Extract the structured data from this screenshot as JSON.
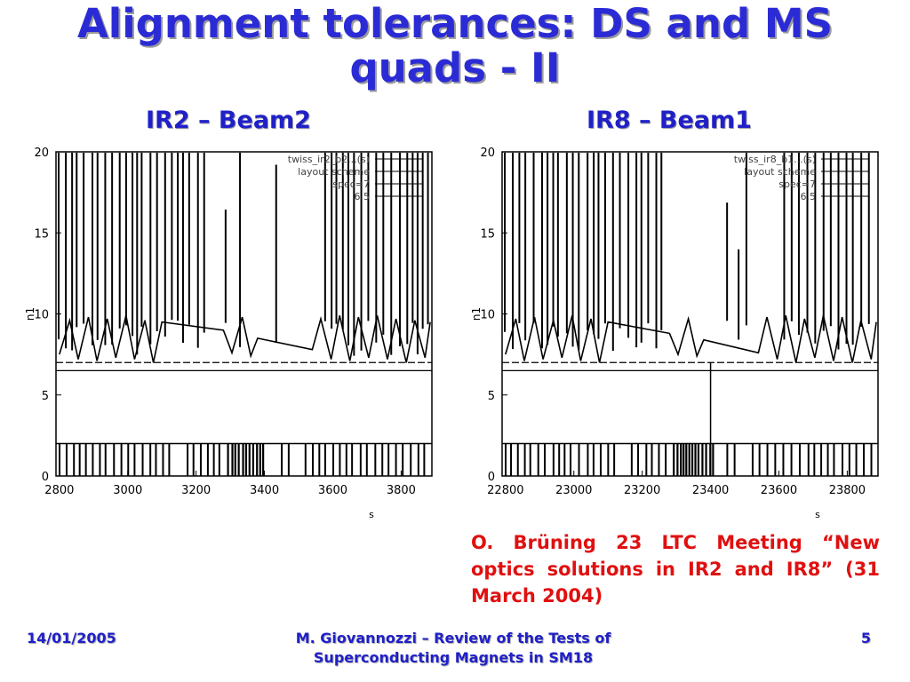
{
  "slide": {
    "title_line1": "Alignment tolerances: DS and MS",
    "title_line2": "quads - II",
    "left_heading": "IR2 – Beam2",
    "right_heading": "IR8 – Beam1",
    "citation": "O. Brüning 23 LTC Meeting “New optics solutions in IR2 and IR8” (31 March 2004)",
    "footer": {
      "date": "14/01/2005",
      "presenter_line1": "M. Giovannozzi – Review of the Tests of",
      "presenter_line2": "Superconducting Magnets in SM18",
      "page_number": "5"
    }
  },
  "chart_data": [
    {
      "type": "line",
      "xlabel": "s",
      "ylabel": "n1",
      "xlim": [
        2790,
        3890
      ],
      "ylim": [
        0,
        20
      ],
      "xticks": [
        "2800",
        "3000",
        "3200",
        "3400",
        "3600",
        "3800"
      ],
      "xtick_values": [
        2800,
        3000,
        3200,
        3400,
        3600,
        3800
      ],
      "yticks": [
        "0",
        "5",
        "10",
        "15",
        "20"
      ],
      "ytick_values": [
        0,
        5,
        10,
        15,
        20
      ],
      "legend": [
        "twiss_ir2_b2...(s)",
        "layout scheme",
        "spec=7",
        "6.5"
      ],
      "legend_position": "top-right",
      "grid": false,
      "series": [
        {
          "name": "spec=7",
          "kind": "hline",
          "values": [
            7
          ]
        },
        {
          "name": "6.5",
          "kind": "hline",
          "values": [
            6.5
          ]
        }
      ],
      "n1_envelope": {
        "x": [
          2800,
          2830,
          2855,
          2885,
          2910,
          2940,
          2965,
          2995,
          3020,
          3050,
          3075,
          3100,
          3280,
          3305,
          3335,
          3360,
          3380,
          3540,
          3565,
          3595,
          3620,
          3650,
          3675,
          3705,
          3730,
          3760,
          3785,
          3815,
          3840,
          3870,
          3885
        ],
        "y": [
          7.5,
          9.6,
          7.2,
          9.8,
          7.1,
          9.7,
          7.3,
          9.9,
          7.2,
          9.6,
          7.0,
          9.5,
          9.0,
          7.6,
          9.8,
          7.4,
          8.5,
          7.8,
          9.7,
          7.2,
          9.9,
          7.1,
          9.8,
          7.3,
          9.9,
          7.2,
          9.7,
          7.0,
          9.6,
          7.3,
          9.5
        ]
      },
      "layout_bars_level": 2
    },
    {
      "type": "line",
      "xlabel": "s",
      "ylabel": "n1",
      "xlim": [
        22790,
        23890
      ],
      "ylim": [
        0,
        20
      ],
      "xticks": [
        "22800",
        "23000",
        "23200",
        "23400",
        "23600",
        "23800"
      ],
      "xtick_values": [
        22800,
        23000,
        23200,
        23400,
        23600,
        23800
      ],
      "yticks": [
        "0",
        "5",
        "10",
        "15",
        "20"
      ],
      "ytick_values": [
        0,
        5,
        10,
        15,
        20
      ],
      "legend": [
        "twiss_ir8_b1...(s)",
        "layout scheme",
        "spec=7",
        "6.5"
      ],
      "legend_position": "top-right",
      "grid": false,
      "series": [
        {
          "name": "spec=7",
          "kind": "hline",
          "values": [
            7
          ]
        },
        {
          "name": "6.5",
          "kind": "hline",
          "values": [
            6.5
          ]
        }
      ],
      "n1_envelope": {
        "x": [
          22800,
          22830,
          22855,
          22885,
          22910,
          22940,
          22965,
          22995,
          23020,
          23050,
          23075,
          23100,
          23280,
          23305,
          23335,
          23360,
          23380,
          23540,
          23565,
          23595,
          23620,
          23650,
          23675,
          23705,
          23730,
          23760,
          23785,
          23815,
          23840,
          23870,
          23885
        ],
        "y": [
          7.5,
          9.7,
          7.1,
          9.8,
          7.2,
          9.6,
          7.3,
          9.9,
          7.1,
          9.7,
          7.0,
          9.5,
          8.8,
          7.5,
          9.7,
          7.4,
          8.4,
          7.6,
          9.8,
          7.2,
          9.9,
          7.0,
          9.7,
          7.3,
          9.9,
          7.1,
          9.8,
          7.0,
          9.6,
          7.2,
          9.5
        ]
      },
      "layout_bars_level": 2
    }
  ]
}
